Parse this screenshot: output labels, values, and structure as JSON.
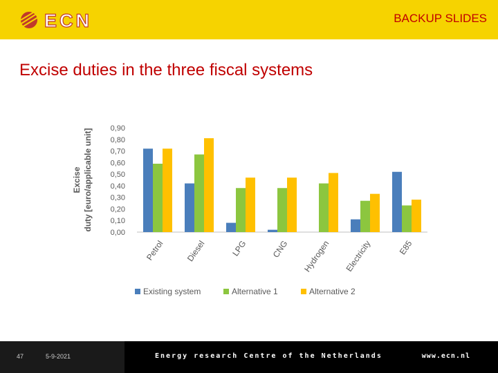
{
  "header": {
    "logo_text": "ECN",
    "section_label": "BACKUP SLIDES"
  },
  "page_title": "Excise duties in the three fiscal systems",
  "footer": {
    "slide_number": "47",
    "date": "5-9-2021",
    "organization": "Energy research Centre of the Netherlands",
    "url": "www.ecn.nl"
  },
  "colors": {
    "header_bg": "#f6d300",
    "title_red": "#c00000",
    "existing": "#4a7ebb",
    "alt1": "#8cc63f",
    "alt2": "#ffc000"
  },
  "chart_data": {
    "type": "bar",
    "ylabel": "Excise duty [euro/applicable unit]",
    "xlabel": "",
    "categories": [
      "Petrol",
      "Diesel",
      "LPG",
      "CNG",
      "Hydrogen",
      "Electricity",
      "E85"
    ],
    "series": [
      {
        "name": "Existing system",
        "color": "#4a7ebb",
        "values": [
          0.72,
          0.42,
          0.08,
          0.02,
          0.0,
          0.11,
          0.52
        ]
      },
      {
        "name": "Alternative 1",
        "color": "#8cc63f",
        "values": [
          0.59,
          0.67,
          0.38,
          0.38,
          0.42,
          0.27,
          0.23
        ]
      },
      {
        "name": "Alternative 2",
        "color": "#ffc000",
        "values": [
          0.72,
          0.81,
          0.47,
          0.47,
          0.51,
          0.33,
          0.28
        ]
      }
    ],
    "yticks": [
      "0,00",
      "0,10",
      "0,20",
      "0,30",
      "0,40",
      "0,50",
      "0,60",
      "0,70",
      "0,80",
      "0,90"
    ],
    "ylim": [
      0,
      0.9
    ],
    "grid": false,
    "legend_position": "bottom"
  }
}
